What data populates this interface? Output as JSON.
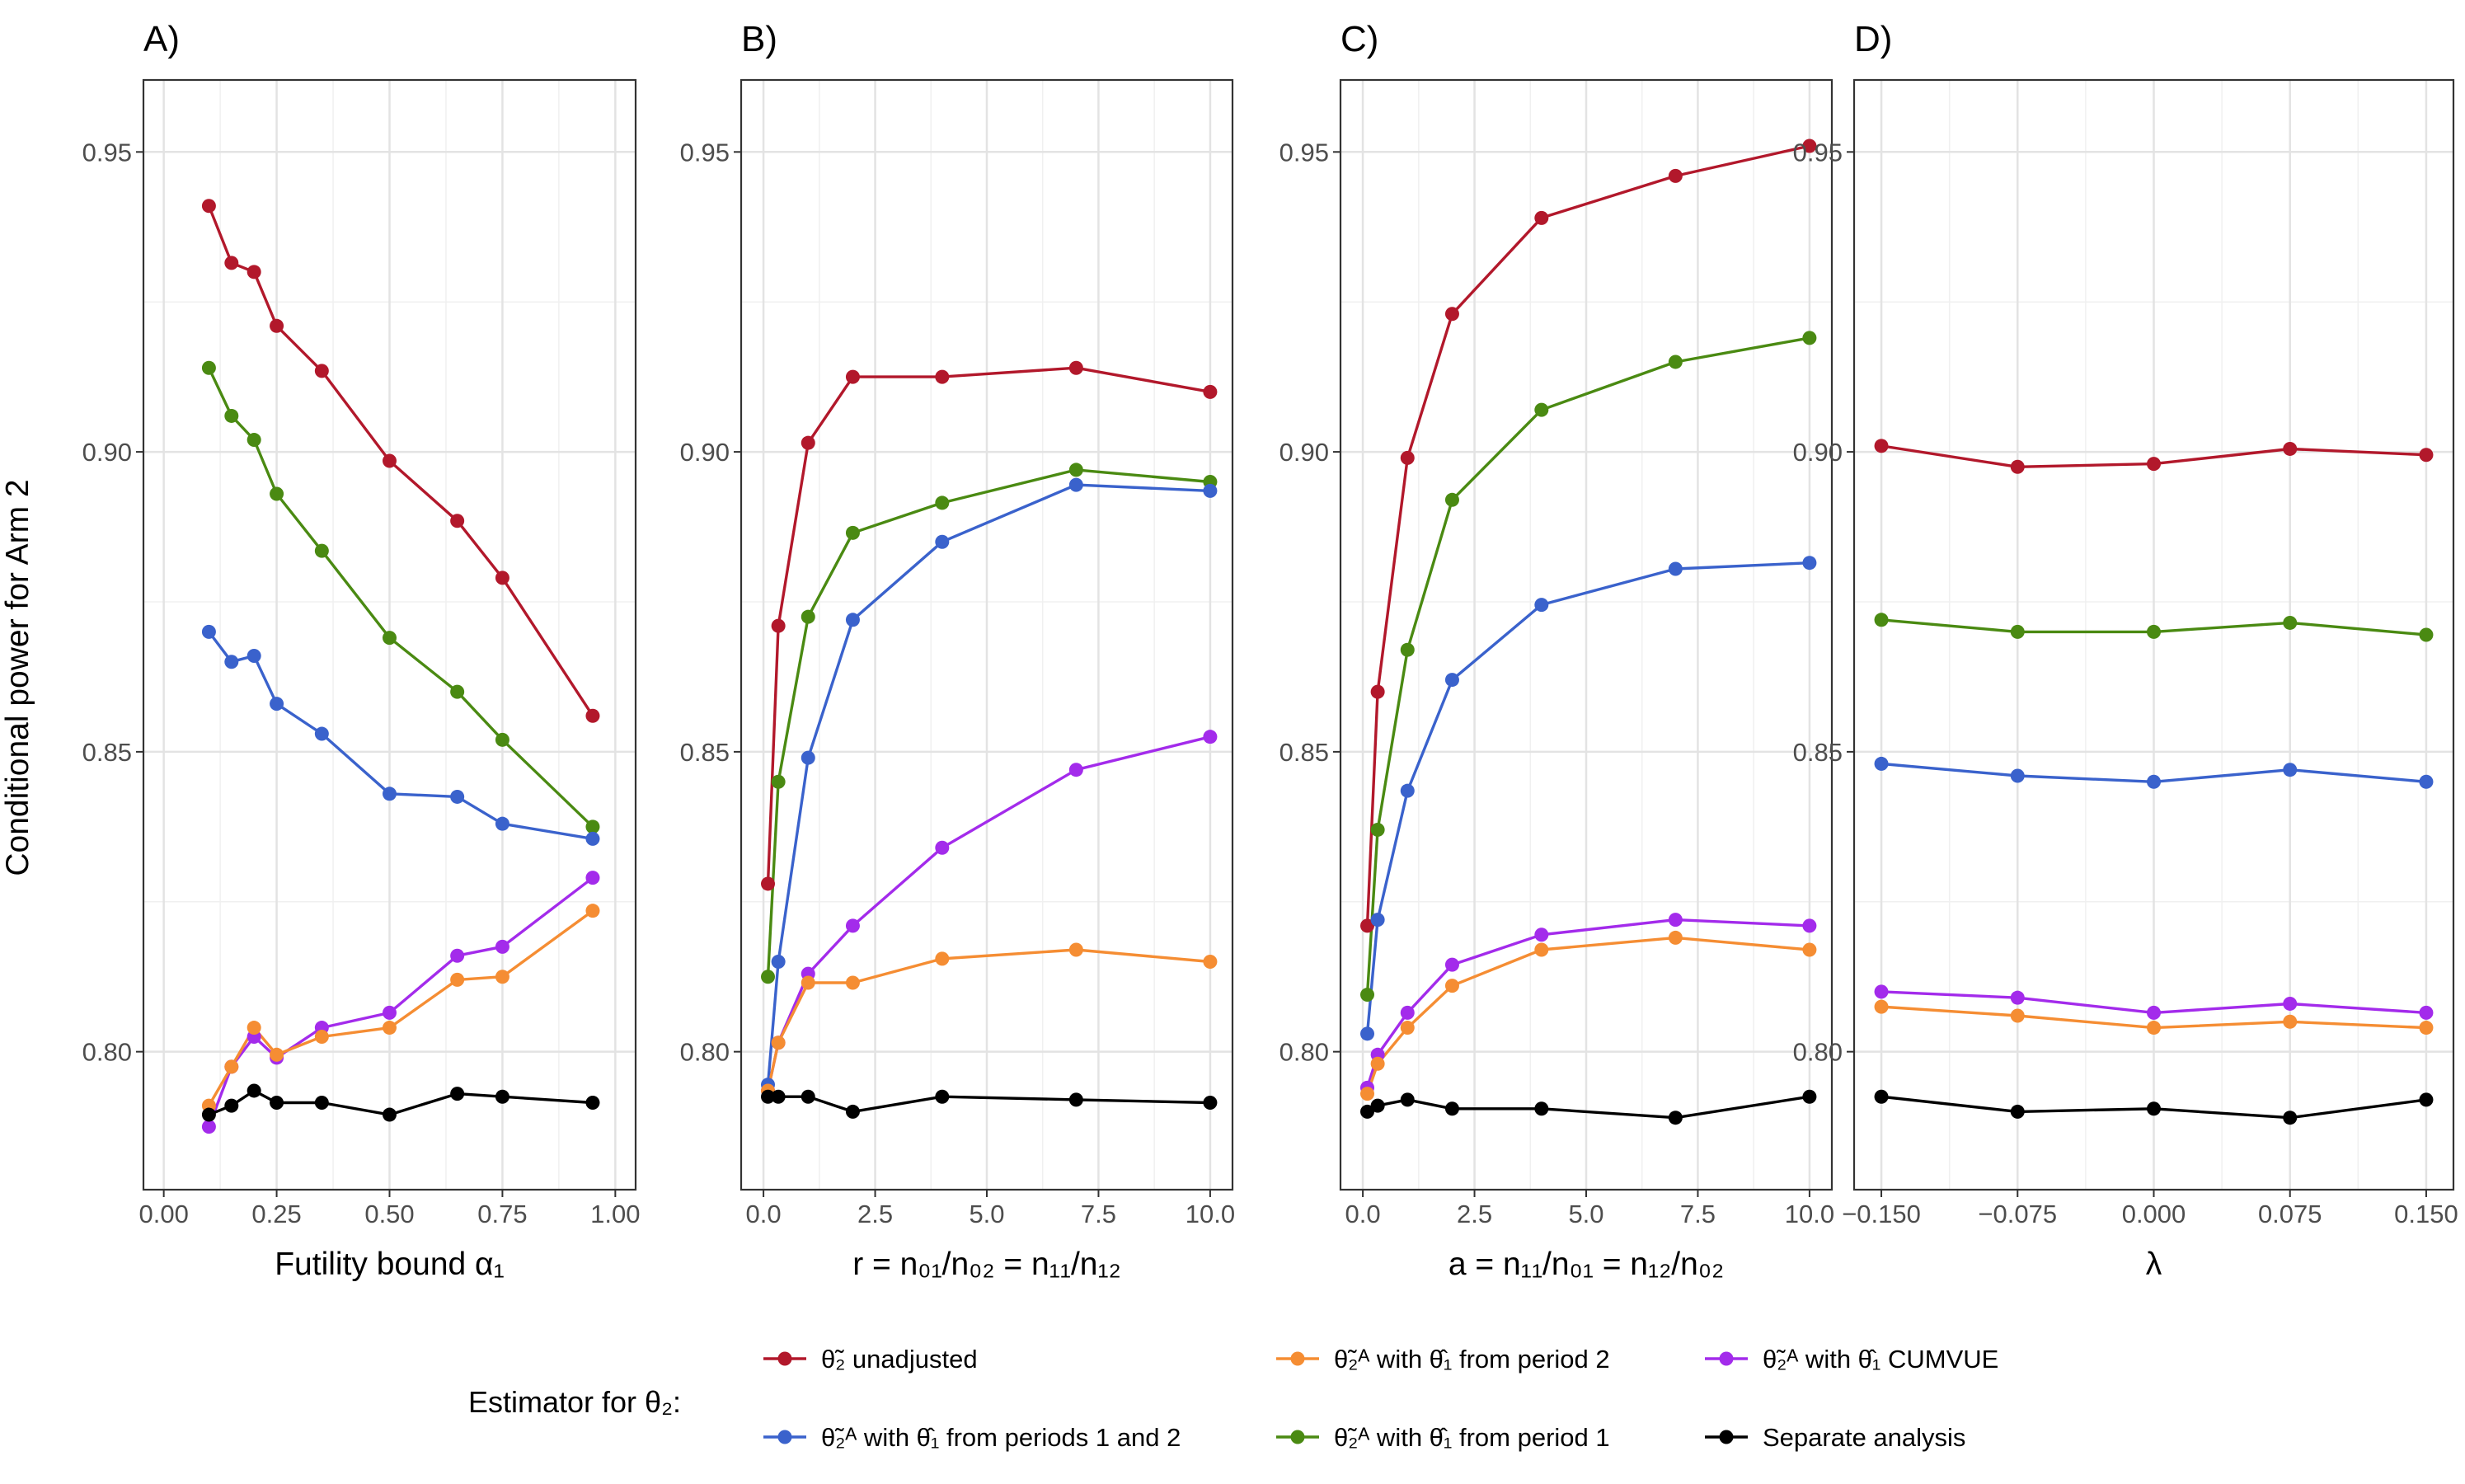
{
  "figure": {
    "ylabel": "Conditional power for Arm 2",
    "legend_title": "Estimator for θ₂:",
    "colors": {
      "unadjusted": "#B2182B",
      "periods12": "#3A62CC",
      "period2": "#F58D33",
      "period1": "#4A8A12",
      "cumvue": "#A32BEB",
      "separate": "#000000"
    }
  },
  "legend": [
    {
      "key": "unadjusted",
      "label": "θ̃₂ unadjusted"
    },
    {
      "key": "period2",
      "label": "θ̃₂ᴬ with θ̂₁ from period 2"
    },
    {
      "key": "cumvue",
      "label": "θ̃₂ᴬ with θ̂₁ CUMVUE"
    },
    {
      "key": "periods12",
      "label": "θ̃₂ᴬ with θ̂₁ from periods 1 and 2"
    },
    {
      "key": "period1",
      "label": "θ̃₂ᴬ with θ̂₁ from period 1"
    },
    {
      "key": "separate",
      "label": "Separate analysis"
    }
  ],
  "chart_data": [
    {
      "type": "line",
      "panel": "A)",
      "xlabel": "Futility bound α₁",
      "xlim": [
        -0.045,
        1.045
      ],
      "ylim": [
        0.777,
        0.962
      ],
      "xticks": [
        0.0,
        0.25,
        0.5,
        0.75,
        1.0
      ],
      "xtick_labels": [
        "0.00",
        "0.25",
        "0.50",
        "0.75",
        "1.00"
      ],
      "yticks": [
        0.8,
        0.85,
        0.9,
        0.95
      ],
      "ytick_labels": [
        "0.80",
        "0.85",
        "0.90",
        "0.95"
      ],
      "x": [
        0.1,
        0.15,
        0.2,
        0.25,
        0.35,
        0.5,
        0.65,
        0.75,
        0.95
      ],
      "series": [
        {
          "key": "unadjusted",
          "values": [
            0.941,
            0.9315,
            0.93,
            0.921,
            0.9135,
            0.8985,
            0.8885,
            0.879,
            0.856
          ]
        },
        {
          "key": "period1",
          "values": [
            0.914,
            0.906,
            0.902,
            0.893,
            0.8835,
            0.869,
            0.86,
            0.852,
            0.8375
          ]
        },
        {
          "key": "periods12",
          "values": [
            0.87,
            0.865,
            0.866,
            0.858,
            0.853,
            0.843,
            0.8425,
            0.838,
            0.8355
          ]
        },
        {
          "key": "cumvue",
          "values": [
            0.7875,
            0.7975,
            0.8025,
            0.799,
            0.804,
            0.8065,
            0.816,
            0.8175,
            0.829
          ]
        },
        {
          "key": "period2",
          "values": [
            0.791,
            0.7975,
            0.804,
            0.7995,
            0.8025,
            0.804,
            0.812,
            0.8125,
            0.8235
          ]
        },
        {
          "key": "separate",
          "values": [
            0.7895,
            0.791,
            0.7935,
            0.7915,
            0.7915,
            0.7895,
            0.793,
            0.7925,
            0.7915
          ]
        }
      ]
    },
    {
      "type": "line",
      "panel": "B)",
      "xlabel": "r = n₀₁/n₀₂ = n₁₁/n₁₂",
      "xlim": [
        -0.5,
        10.5
      ],
      "ylim": [
        0.777,
        0.962
      ],
      "xticks": [
        0,
        2.5,
        5,
        7.5,
        10
      ],
      "xtick_labels": [
        "0.0",
        "2.5",
        "5.0",
        "7.5",
        "10.0"
      ],
      "yticks": [
        0.8,
        0.85,
        0.9,
        0.95
      ],
      "ytick_labels": [
        "0.80",
        "0.85",
        "0.90",
        "0.95"
      ],
      "x": [
        0.1,
        0.333,
        1,
        2,
        4,
        7,
        10
      ],
      "series": [
        {
          "key": "unadjusted",
          "values": [
            0.828,
            0.871,
            0.9015,
            0.9125,
            0.9125,
            0.914,
            0.91
          ]
        },
        {
          "key": "period1",
          "values": [
            0.8125,
            0.845,
            0.8725,
            0.8865,
            0.8915,
            0.897,
            0.895
          ]
        },
        {
          "key": "periods12",
          "values": [
            0.7945,
            0.815,
            0.849,
            0.872,
            0.885,
            0.8945,
            0.8935
          ]
        },
        {
          "key": "cumvue",
          "values": [
            0.7935,
            0.8015,
            0.813,
            0.821,
            0.834,
            0.847,
            0.8525
          ]
        },
        {
          "key": "period2",
          "values": [
            0.7935,
            0.8015,
            0.8115,
            0.8115,
            0.8155,
            0.817,
            0.815
          ]
        },
        {
          "key": "separate",
          "values": [
            0.7925,
            0.7925,
            0.7925,
            0.79,
            0.7925,
            0.792,
            0.7915
          ]
        }
      ]
    },
    {
      "type": "line",
      "panel": "C)",
      "xlabel": "a = n₁₁/n₀₁ = n₁₂/n₀₂",
      "xlim": [
        -0.5,
        10.5
      ],
      "ylim": [
        0.777,
        0.962
      ],
      "xticks": [
        0,
        2.5,
        5,
        7.5,
        10
      ],
      "xtick_labels": [
        "0.0",
        "2.5",
        "5.0",
        "7.5",
        "10.0"
      ],
      "yticks": [
        0.8,
        0.85,
        0.9,
        0.95
      ],
      "ytick_labels": [
        "0.80",
        "0.85",
        "0.90",
        "0.95"
      ],
      "x": [
        0.1,
        0.333,
        1,
        2,
        4,
        7,
        10
      ],
      "series": [
        {
          "key": "unadjusted",
          "values": [
            0.821,
            0.86,
            0.899,
            0.923,
            0.939,
            0.946,
            0.951
          ]
        },
        {
          "key": "period1",
          "values": [
            0.8095,
            0.837,
            0.867,
            0.892,
            0.907,
            0.915,
            0.919
          ]
        },
        {
          "key": "periods12",
          "values": [
            0.803,
            0.822,
            0.8435,
            0.862,
            0.8745,
            0.8805,
            0.8815
          ]
        },
        {
          "key": "cumvue",
          "values": [
            0.794,
            0.7995,
            0.8065,
            0.8145,
            0.8195,
            0.822,
            0.821
          ]
        },
        {
          "key": "period2",
          "values": [
            0.793,
            0.798,
            0.804,
            0.811,
            0.817,
            0.819,
            0.817
          ]
        },
        {
          "key": "separate",
          "values": [
            0.79,
            0.791,
            0.792,
            0.7905,
            0.7905,
            0.789,
            0.7925
          ]
        }
      ]
    },
    {
      "type": "line",
      "panel": "D)",
      "xlabel": "λ",
      "xlim": [
        -0.165,
        0.165
      ],
      "ylim": [
        0.777,
        0.962
      ],
      "xticks": [
        -0.15,
        -0.075,
        0.0,
        0.075,
        0.15
      ],
      "xtick_labels": [
        "−0.150",
        "−0.075",
        "0.000",
        "0.075",
        "0.150"
      ],
      "yticks": [
        0.8,
        0.85,
        0.9,
        0.95
      ],
      "ytick_labels": [
        "0.80",
        "0.85",
        "0.90",
        "0.95"
      ],
      "x": [
        -0.15,
        -0.075,
        0.0,
        0.075,
        0.15
      ],
      "series": [
        {
          "key": "unadjusted",
          "values": [
            0.901,
            0.8975,
            0.898,
            0.9005,
            0.8995
          ]
        },
        {
          "key": "period1",
          "values": [
            0.872,
            0.87,
            0.87,
            0.8715,
            0.8695
          ]
        },
        {
          "key": "periods12",
          "values": [
            0.848,
            0.846,
            0.845,
            0.847,
            0.845
          ]
        },
        {
          "key": "cumvue",
          "values": [
            0.81,
            0.809,
            0.8065,
            0.808,
            0.8065
          ]
        },
        {
          "key": "period2",
          "values": [
            0.8075,
            0.806,
            0.804,
            0.805,
            0.804
          ]
        },
        {
          "key": "separate",
          "values": [
            0.7925,
            0.79,
            0.7905,
            0.789,
            0.792
          ]
        }
      ]
    }
  ]
}
